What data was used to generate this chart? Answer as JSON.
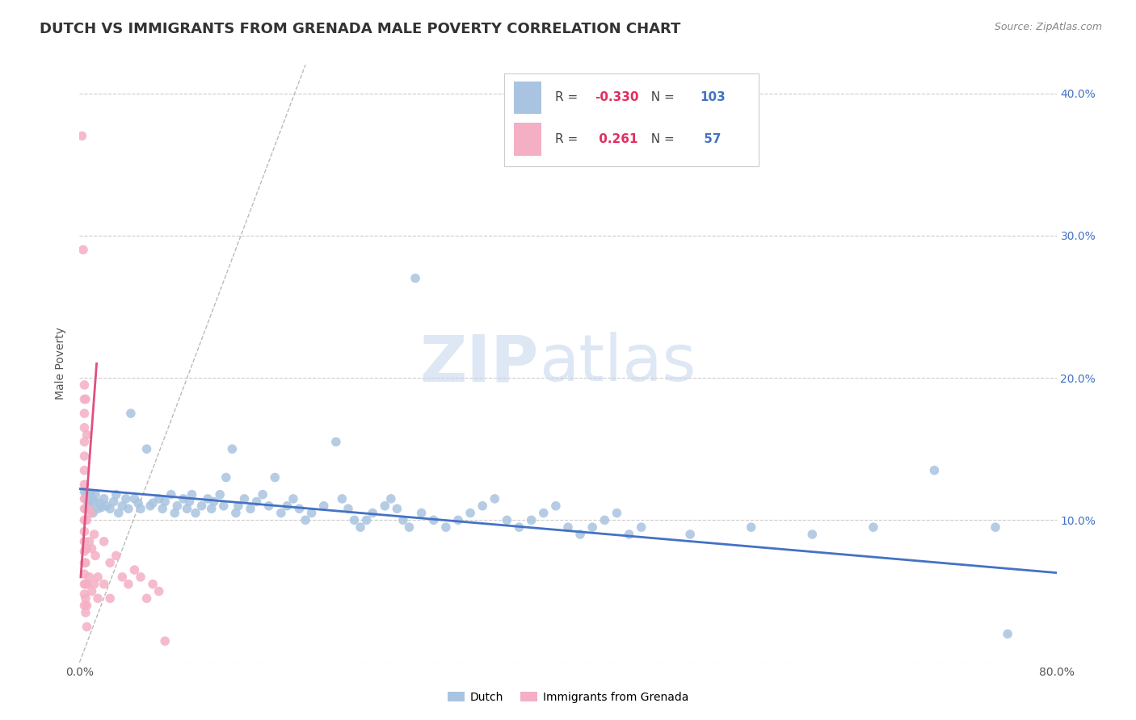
{
  "title": "DUTCH VS IMMIGRANTS FROM GRENADA MALE POVERTY CORRELATION CHART",
  "source": "Source: ZipAtlas.com",
  "ylabel": "Male Poverty",
  "xlim": [
    0.0,
    0.8
  ],
  "ylim": [
    0.0,
    0.42
  ],
  "dutch_R": -0.33,
  "dutch_N": 103,
  "grenada_R": 0.261,
  "grenada_N": 57,
  "blue_color": "#a8c4e0",
  "pink_color": "#f4afc4",
  "blue_line_color": "#4472c4",
  "pink_line_color": "#e05080",
  "blue_scatter": [
    [
      0.004,
      0.12
    ],
    [
      0.005,
      0.115
    ],
    [
      0.005,
      0.108
    ],
    [
      0.006,
      0.118
    ],
    [
      0.007,
      0.112
    ],
    [
      0.008,
      0.109
    ],
    [
      0.009,
      0.118
    ],
    [
      0.01,
      0.115
    ],
    [
      0.011,
      0.105
    ],
    [
      0.012,
      0.113
    ],
    [
      0.013,
      0.118
    ],
    [
      0.015,
      0.108
    ],
    [
      0.016,
      0.112
    ],
    [
      0.018,
      0.109
    ],
    [
      0.02,
      0.115
    ],
    [
      0.022,
      0.11
    ],
    [
      0.025,
      0.108
    ],
    [
      0.028,
      0.113
    ],
    [
      0.03,
      0.118
    ],
    [
      0.032,
      0.105
    ],
    [
      0.035,
      0.11
    ],
    [
      0.038,
      0.115
    ],
    [
      0.04,
      0.108
    ],
    [
      0.042,
      0.175
    ],
    [
      0.045,
      0.115
    ],
    [
      0.048,
      0.112
    ],
    [
      0.05,
      0.108
    ],
    [
      0.055,
      0.15
    ],
    [
      0.058,
      0.11
    ],
    [
      0.06,
      0.112
    ],
    [
      0.065,
      0.115
    ],
    [
      0.068,
      0.108
    ],
    [
      0.07,
      0.113
    ],
    [
      0.075,
      0.118
    ],
    [
      0.078,
      0.105
    ],
    [
      0.08,
      0.11
    ],
    [
      0.085,
      0.115
    ],
    [
      0.088,
      0.108
    ],
    [
      0.09,
      0.113
    ],
    [
      0.092,
      0.118
    ],
    [
      0.095,
      0.105
    ],
    [
      0.1,
      0.11
    ],
    [
      0.105,
      0.115
    ],
    [
      0.108,
      0.108
    ],
    [
      0.11,
      0.113
    ],
    [
      0.115,
      0.118
    ],
    [
      0.118,
      0.11
    ],
    [
      0.12,
      0.13
    ],
    [
      0.125,
      0.15
    ],
    [
      0.128,
      0.105
    ],
    [
      0.13,
      0.11
    ],
    [
      0.135,
      0.115
    ],
    [
      0.14,
      0.108
    ],
    [
      0.145,
      0.113
    ],
    [
      0.15,
      0.118
    ],
    [
      0.155,
      0.11
    ],
    [
      0.16,
      0.13
    ],
    [
      0.165,
      0.105
    ],
    [
      0.17,
      0.11
    ],
    [
      0.175,
      0.115
    ],
    [
      0.18,
      0.108
    ],
    [
      0.185,
      0.1
    ],
    [
      0.19,
      0.105
    ],
    [
      0.2,
      0.11
    ],
    [
      0.21,
      0.155
    ],
    [
      0.215,
      0.115
    ],
    [
      0.22,
      0.108
    ],
    [
      0.225,
      0.1
    ],
    [
      0.23,
      0.095
    ],
    [
      0.235,
      0.1
    ],
    [
      0.24,
      0.105
    ],
    [
      0.25,
      0.11
    ],
    [
      0.255,
      0.115
    ],
    [
      0.26,
      0.108
    ],
    [
      0.265,
      0.1
    ],
    [
      0.27,
      0.095
    ],
    [
      0.275,
      0.27
    ],
    [
      0.28,
      0.105
    ],
    [
      0.29,
      0.1
    ],
    [
      0.3,
      0.095
    ],
    [
      0.31,
      0.1
    ],
    [
      0.32,
      0.105
    ],
    [
      0.33,
      0.11
    ],
    [
      0.34,
      0.115
    ],
    [
      0.35,
      0.1
    ],
    [
      0.36,
      0.095
    ],
    [
      0.37,
      0.1
    ],
    [
      0.38,
      0.105
    ],
    [
      0.39,
      0.11
    ],
    [
      0.4,
      0.095
    ],
    [
      0.41,
      0.09
    ],
    [
      0.42,
      0.095
    ],
    [
      0.43,
      0.1
    ],
    [
      0.44,
      0.105
    ],
    [
      0.45,
      0.09
    ],
    [
      0.46,
      0.095
    ],
    [
      0.5,
      0.09
    ],
    [
      0.55,
      0.095
    ],
    [
      0.6,
      0.09
    ],
    [
      0.65,
      0.095
    ],
    [
      0.7,
      0.135
    ],
    [
      0.75,
      0.095
    ],
    [
      0.76,
      0.02
    ]
  ],
  "pink_scatter": [
    [
      0.002,
      0.37
    ],
    [
      0.003,
      0.29
    ],
    [
      0.004,
      0.195
    ],
    [
      0.004,
      0.185
    ],
    [
      0.004,
      0.175
    ],
    [
      0.004,
      0.165
    ],
    [
      0.004,
      0.155
    ],
    [
      0.004,
      0.145
    ],
    [
      0.004,
      0.135
    ],
    [
      0.004,
      0.125
    ],
    [
      0.004,
      0.115
    ],
    [
      0.004,
      0.108
    ],
    [
      0.004,
      0.1
    ],
    [
      0.004,
      0.092
    ],
    [
      0.004,
      0.085
    ],
    [
      0.004,
      0.078
    ],
    [
      0.004,
      0.07
    ],
    [
      0.004,
      0.062
    ],
    [
      0.004,
      0.055
    ],
    [
      0.004,
      0.048
    ],
    [
      0.004,
      0.04
    ],
    [
      0.005,
      0.185
    ],
    [
      0.005,
      0.08
    ],
    [
      0.005,
      0.07
    ],
    [
      0.005,
      0.055
    ],
    [
      0.005,
      0.045
    ],
    [
      0.005,
      0.035
    ],
    [
      0.006,
      0.16
    ],
    [
      0.006,
      0.1
    ],
    [
      0.006,
      0.08
    ],
    [
      0.006,
      0.055
    ],
    [
      0.006,
      0.04
    ],
    [
      0.006,
      0.025
    ],
    [
      0.007,
      0.108
    ],
    [
      0.008,
      0.085
    ],
    [
      0.008,
      0.06
    ],
    [
      0.009,
      0.105
    ],
    [
      0.01,
      0.08
    ],
    [
      0.01,
      0.05
    ],
    [
      0.012,
      0.09
    ],
    [
      0.012,
      0.055
    ],
    [
      0.013,
      0.075
    ],
    [
      0.015,
      0.06
    ],
    [
      0.015,
      0.045
    ],
    [
      0.02,
      0.085
    ],
    [
      0.02,
      0.055
    ],
    [
      0.025,
      0.07
    ],
    [
      0.025,
      0.045
    ],
    [
      0.03,
      0.075
    ],
    [
      0.035,
      0.06
    ],
    [
      0.04,
      0.055
    ],
    [
      0.045,
      0.065
    ],
    [
      0.05,
      0.06
    ],
    [
      0.055,
      0.045
    ],
    [
      0.06,
      0.055
    ],
    [
      0.065,
      0.05
    ],
    [
      0.07,
      0.015
    ]
  ],
  "background_color": "#ffffff",
  "grid_color": "#cccccc",
  "title_fontsize": 13,
  "axis_fontsize": 10,
  "legend_fontsize": 11
}
